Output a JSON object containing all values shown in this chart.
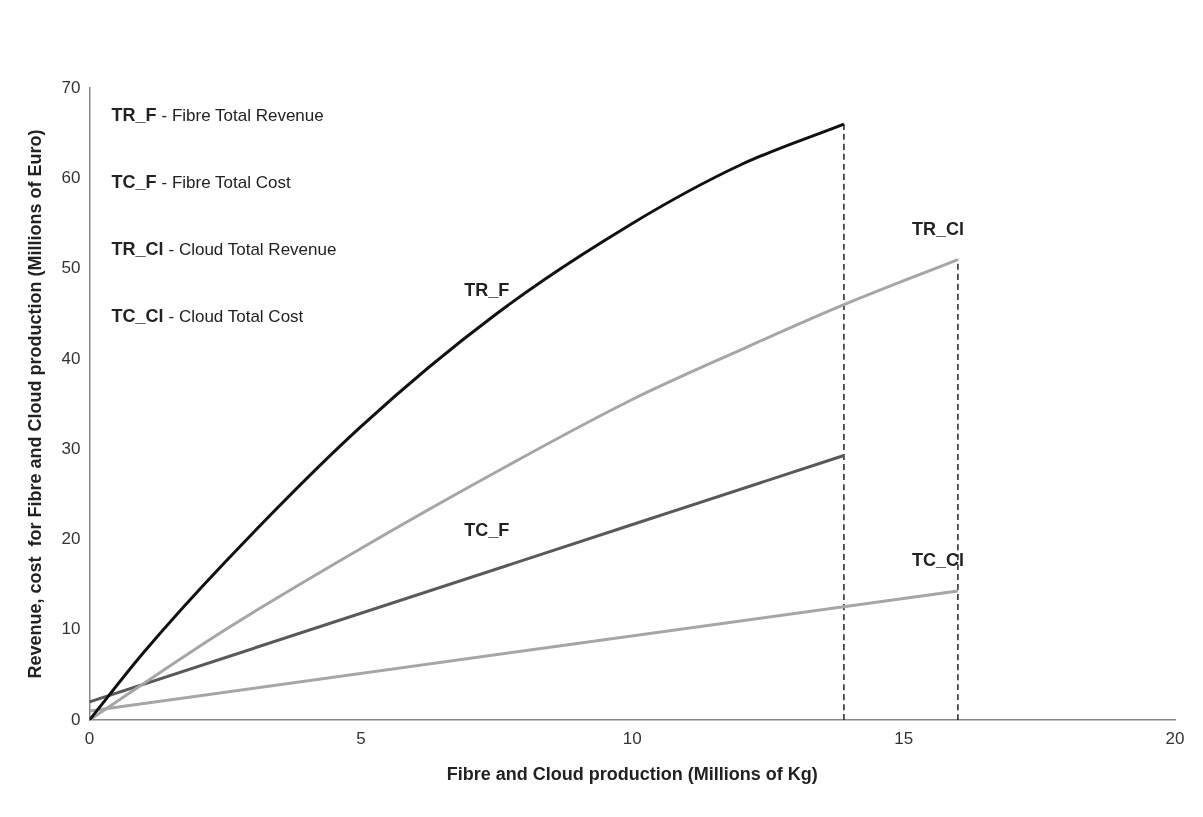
{
  "chart_data": {
    "type": "line",
    "xlabel": "Fibre and Cloud production (Millions of Kg)",
    "ylabel": "Revenue, cost  for Fibre and Cloud production (Millions of Euro)",
    "xlim": [
      0,
      20
    ],
    "xticks": [
      0,
      5,
      10,
      15,
      20
    ],
    "ylim": [
      0,
      70
    ],
    "yticks": [
      0,
      10,
      20,
      30,
      40,
      50,
      60,
      70
    ],
    "grid": false,
    "marker": "none",
    "line_style": "solid",
    "series": [
      {
        "name": "TR_F",
        "color": "#111111",
        "x": [
          0,
          1,
          2.5,
          5,
          7.5,
          10,
          12,
          13.9
        ],
        "values": [
          0,
          7.5,
          17.5,
          32.5,
          45,
          55,
          61.5,
          66
        ]
      },
      {
        "name": "TR_Cl",
        "color": "#a6a6a6",
        "x": [
          0,
          2.5,
          5,
          7.5,
          10,
          12,
          13.9,
          16
        ],
        "values": [
          0,
          10,
          19,
          27.5,
          35.5,
          41,
          46,
          51
        ]
      },
      {
        "name": "TC_F",
        "color": "#595959",
        "x": [
          0,
          13.9
        ],
        "values": [
          2,
          29.3
        ]
      },
      {
        "name": "TC_Cl",
        "color": "#a6a6a6",
        "x": [
          0,
          16
        ],
        "values": [
          1,
          14.3
        ]
      },
      {
        "color": "#222222",
        "line_style": "dashed",
        "x": [
          13.9,
          13.9
        ],
        "values": [
          0,
          66
        ]
      },
      {
        "color": "#222222",
        "line_style": "dashed",
        "x": [
          16,
          16
        ],
        "values": [
          0,
          51
        ]
      }
    ],
    "annotations": [
      "TR_F - Fibre Total Revenue",
      "TC_F - Fibre Total Cost",
      "TR_Cl - Cloud Total Revenue",
      "TC_Cl - Cloud Total Cost"
    ]
  }
}
